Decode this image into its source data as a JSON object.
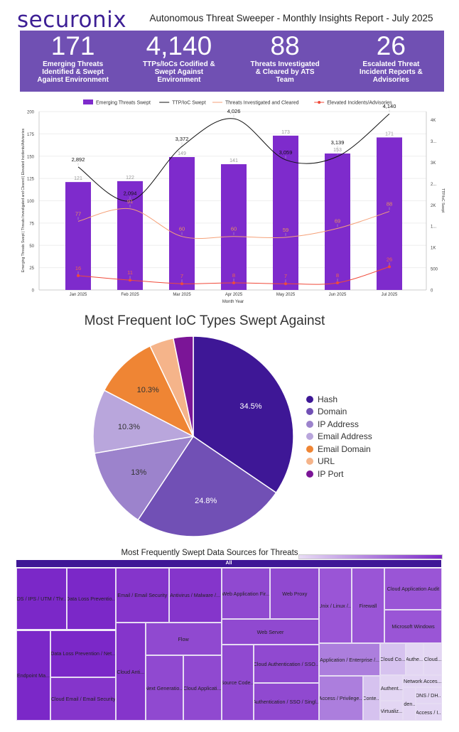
{
  "header": {
    "logo": "securonix",
    "title": "Autonomous Threat Sweeper - Monthly Insights Report - July 2025"
  },
  "kpis": [
    {
      "value": "171",
      "label": "Emerging Threats Identified & Swept Against Environment"
    },
    {
      "value": "4,140",
      "label": "TTPs/IoCs Codified & Swept Against Environment"
    },
    {
      "value": "88",
      "label": "Threats Investigated & Cleared by ATS Team"
    },
    {
      "value": "26",
      "label": "Escalated Threat Incident Reports & Advisories"
    }
  ],
  "colors": {
    "brand": "#3d1f95",
    "kpi_band": "#7050b3",
    "bars": "#7e2bcc",
    "ttp_line": "#111111",
    "investigated_line": "#f5a27a",
    "elevated_line": "#f04a3a"
  },
  "chart_data": [
    {
      "type": "bar+line",
      "legend": [
        "Emerging Threats Swept",
        "TTP/IoC Swept",
        "Threats Investigated and Cleared",
        "Elevated Incidents/Advisories"
      ],
      "legend_position": "top",
      "categories": [
        "Jan 2025",
        "Feb 2025",
        "Mar 2025",
        "Apr 2025",
        "May 2025",
        "Jun 2025",
        "Jul 2025"
      ],
      "xlabel": "Month Year",
      "ylabel": "Emerging Threats Swept | Threats Investigated and Cleared | Elevated Incidents/Advisories",
      "y2label": "TTP/IoC Swept",
      "ylim": [
        0,
        200
      ],
      "y2lim": [
        0,
        4194
      ],
      "yticks": [
        "0",
        "25",
        "50",
        "75",
        "100",
        "125",
        "150",
        "175",
        "200"
      ],
      "y2ticks": [
        "0",
        "500",
        "1K",
        "1...",
        "2K",
        "2...",
        "3K",
        "3...",
        "4K"
      ],
      "series": [
        {
          "name": "Emerging Threats Swept",
          "axis": "left",
          "type": "bar",
          "values": [
            121,
            122,
            149,
            141,
            173,
            153,
            171
          ],
          "labels": [
            "121",
            "122",
            "149",
            "141",
            "173",
            "153",
            "171"
          ]
        },
        {
          "name": "TTP/IoC Swept",
          "axis": "right",
          "type": "line",
          "values": [
            2892,
            2094,
            3372,
            4026,
            3059,
            3139,
            4140
          ],
          "labels": [
            "2,892",
            "2,094",
            "3,372",
            "4,026",
            "3,059",
            "3,139",
            "4,140"
          ]
        },
        {
          "name": "Threats Investigated and Cleared",
          "axis": "left",
          "type": "line",
          "values": [
            77,
            91,
            60,
            60,
            59,
            69,
            88
          ],
          "labels": [
            "77",
            "91",
            "60",
            "60",
            "59",
            "69",
            "88"
          ]
        },
        {
          "name": "Elevated Incidents/Advisories",
          "axis": "left",
          "type": "line",
          "values": [
            16,
            11,
            7,
            8,
            7,
            8,
            26
          ],
          "labels": [
            "16",
            "11",
            "7",
            "8",
            "7",
            "8",
            "26"
          ]
        }
      ]
    },
    {
      "type": "pie",
      "title": "Most Frequent IoC Types Swept Against",
      "legend_position": "right",
      "slices": [
        {
          "label": "Hash",
          "value": 34.5,
          "text": "34.5%",
          "color": "#3e1796"
        },
        {
          "label": "Domain",
          "value": 24.8,
          "text": "24.8%",
          "color": "#7150b5"
        },
        {
          "label": "IP Address",
          "value": 13,
          "text": "13%",
          "color": "#9c83cc"
        },
        {
          "label": "Email Address",
          "value": 10.3,
          "text": "10.3%",
          "color": "#b9a6dc"
        },
        {
          "label": "Email Domain",
          "value": 10.3,
          "text": "10.3%",
          "color": "#ef8534"
        },
        {
          "label": "URL",
          "value": 3.9,
          "text": "",
          "color": "#f5b48a"
        },
        {
          "label": "IP Port",
          "value": 3.2,
          "text": "",
          "color": "#7b1597"
        }
      ]
    },
    {
      "type": "treemap",
      "title": "Most Frequently Swept Data Sources for Threats",
      "root": "All",
      "tiles": [
        "IDS / IPS / UTM / Thr...",
        "Data Loss Preventio...",
        "Endpoint Ma...",
        "Data Loss Prevention / Net...",
        "Cloud Email / Email Security",
        "Email / Email Security",
        "Antivirus / Malware /...",
        "Cloud Anti...",
        "Flow",
        "Next Generatio...",
        "Cloud Applicati...",
        "Web Application Fir...",
        "Web Proxy",
        "Web Server",
        "Source Code...",
        "Cloud Authentication / SSO...",
        "Authentication / SSO / Singl...",
        "Unix / Linux /...",
        "Firewall",
        "Cloud Application Audit",
        "Microsoft Windows",
        "Application / Enterprise /...",
        "Access / Privilege...",
        "Conte...",
        "Cloud Co...",
        "Authe...",
        "Cloud...",
        "Authent...",
        "Virtualiz...",
        "Network Acces...",
        "Iden...",
        "DNS / DH...",
        "Access / I..."
      ]
    }
  ]
}
